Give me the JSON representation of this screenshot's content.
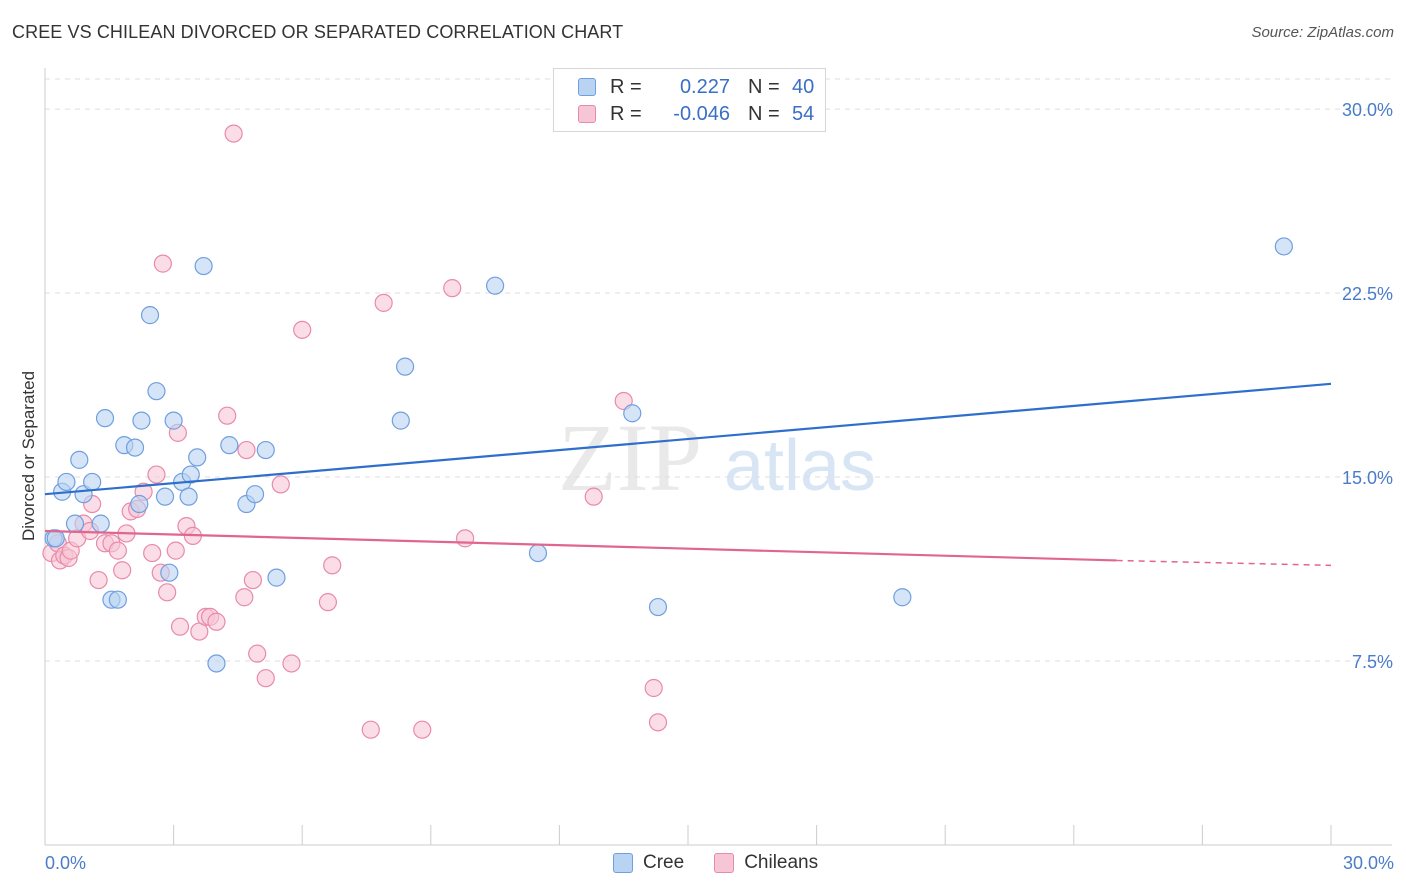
{
  "title": "CREE VS CHILEAN DIVORCED OR SEPARATED CORRELATION CHART",
  "source": "Source: ZipAtlas.com",
  "watermark": {
    "zip": "ZIP",
    "atlas": "atlas"
  },
  "legend": {
    "rows": [
      {
        "r_label": "R =",
        "r_value": "0.227",
        "n_label": "N =",
        "n_value": "40"
      },
      {
        "r_label": "R =",
        "r_value": "-0.046",
        "n_label": "N =",
        "n_value": "54"
      }
    ]
  },
  "colors": {
    "cree_fill": "#b9d3f2",
    "cree_stroke": "#6f9fe0",
    "cree_line": "#2f6fcc",
    "chile_fill": "#f7c6d6",
    "chile_stroke": "#e98aa9",
    "chile_line": "#e06690",
    "grid": "#dddddd",
    "tick": "#4a7cc9"
  },
  "chart_data": {
    "type": "scatter",
    "title": "CREE VS CHILEAN DIVORCED OR SEPARATED CORRELATION CHART",
    "xlabel": "",
    "ylabel": "Divorced or Separated",
    "xlim": [
      0,
      30
    ],
    "ylim": [
      0,
      32
    ],
    "x_tick_labels": [
      "0.0%",
      "30.0%"
    ],
    "y_ticks": [
      7.5,
      15.0,
      22.5,
      30.0
    ],
    "y_tick_labels": [
      "7.5%",
      "15.0%",
      "22.5%",
      "30.0%"
    ],
    "legend_position": "top-center",
    "series": [
      {
        "name": "Cree",
        "r": 0.227,
        "n": 40,
        "trend": {
          "x": [
            0,
            30
          ],
          "y": [
            14.3,
            18.8
          ]
        },
        "points": [
          [
            0.2,
            12.5
          ],
          [
            0.4,
            14.4
          ],
          [
            0.5,
            14.8
          ],
          [
            0.7,
            13.1
          ],
          [
            0.9,
            14.3
          ],
          [
            0.8,
            15.7
          ],
          [
            1.1,
            14.8
          ],
          [
            1.3,
            13.1
          ],
          [
            1.4,
            17.4
          ],
          [
            1.55,
            10.0
          ],
          [
            1.7,
            10.0
          ],
          [
            1.85,
            16.3
          ],
          [
            2.1,
            16.2
          ],
          [
            2.2,
            13.9
          ],
          [
            2.25,
            17.3
          ],
          [
            2.45,
            21.6
          ],
          [
            2.6,
            18.5
          ],
          [
            2.8,
            14.2
          ],
          [
            2.9,
            11.1
          ],
          [
            3.0,
            17.3
          ],
          [
            3.2,
            14.8
          ],
          [
            3.35,
            14.2
          ],
          [
            3.4,
            15.1
          ],
          [
            3.55,
            15.8
          ],
          [
            3.7,
            23.6
          ],
          [
            4.0,
            7.4
          ],
          [
            4.3,
            16.3
          ],
          [
            4.7,
            13.9
          ],
          [
            4.9,
            14.3
          ],
          [
            5.15,
            16.1
          ],
          [
            5.4,
            10.9
          ],
          [
            8.3,
            17.3
          ],
          [
            8.4,
            19.5
          ],
          [
            10.5,
            22.8
          ],
          [
            11.5,
            11.9
          ],
          [
            13.7,
            17.6
          ],
          [
            14.3,
            9.7
          ],
          [
            20.0,
            10.1
          ],
          [
            28.9,
            24.4
          ],
          [
            0.25,
            12.5
          ]
        ]
      },
      {
        "name": "Chileans",
        "r": -0.046,
        "n": 54,
        "trend": {
          "x": [
            0,
            25
          ],
          "y": [
            12.8,
            11.6
          ]
        },
        "trend_dashed": {
          "x": [
            25,
            30
          ],
          "y": [
            11.6,
            11.4
          ]
        },
        "points": [
          [
            0.15,
            11.9
          ],
          [
            0.3,
            12.3
          ],
          [
            0.35,
            11.6
          ],
          [
            0.45,
            11.8
          ],
          [
            0.55,
            11.7
          ],
          [
            0.6,
            12.0
          ],
          [
            0.75,
            12.5
          ],
          [
            0.9,
            13.1
          ],
          [
            1.05,
            12.8
          ],
          [
            1.1,
            13.9
          ],
          [
            1.25,
            10.8
          ],
          [
            1.4,
            12.3
          ],
          [
            1.55,
            12.3
          ],
          [
            1.7,
            12.0
          ],
          [
            1.8,
            11.2
          ],
          [
            1.9,
            12.7
          ],
          [
            2.0,
            13.6
          ],
          [
            2.15,
            13.7
          ],
          [
            2.3,
            14.4
          ],
          [
            2.5,
            11.9
          ],
          [
            2.6,
            15.1
          ],
          [
            2.7,
            11.1
          ],
          [
            2.75,
            23.7
          ],
          [
            2.85,
            10.3
          ],
          [
            3.05,
            12.0
          ],
          [
            3.1,
            16.8
          ],
          [
            3.15,
            8.9
          ],
          [
            3.3,
            13.0
          ],
          [
            3.45,
            12.6
          ],
          [
            3.6,
            8.7
          ],
          [
            3.75,
            9.3
          ],
          [
            3.85,
            9.3
          ],
          [
            4.0,
            9.1
          ],
          [
            4.25,
            17.5
          ],
          [
            4.4,
            29.0
          ],
          [
            4.65,
            10.1
          ],
          [
            4.7,
            16.1
          ],
          [
            4.85,
            10.8
          ],
          [
            4.95,
            7.8
          ],
          [
            5.15,
            6.8
          ],
          [
            5.5,
            14.7
          ],
          [
            5.75,
            7.4
          ],
          [
            6.0,
            21.0
          ],
          [
            6.6,
            9.9
          ],
          [
            6.7,
            11.4
          ],
          [
            7.6,
            4.7
          ],
          [
            7.9,
            22.1
          ],
          [
            8.8,
            4.7
          ],
          [
            9.5,
            22.7
          ],
          [
            9.8,
            12.5
          ],
          [
            12.8,
            14.2
          ],
          [
            13.5,
            18.1
          ],
          [
            14.2,
            6.4
          ],
          [
            14.3,
            5.0
          ]
        ]
      }
    ]
  },
  "bottom_legend": {
    "items": [
      "Cree",
      "Chileans"
    ]
  }
}
